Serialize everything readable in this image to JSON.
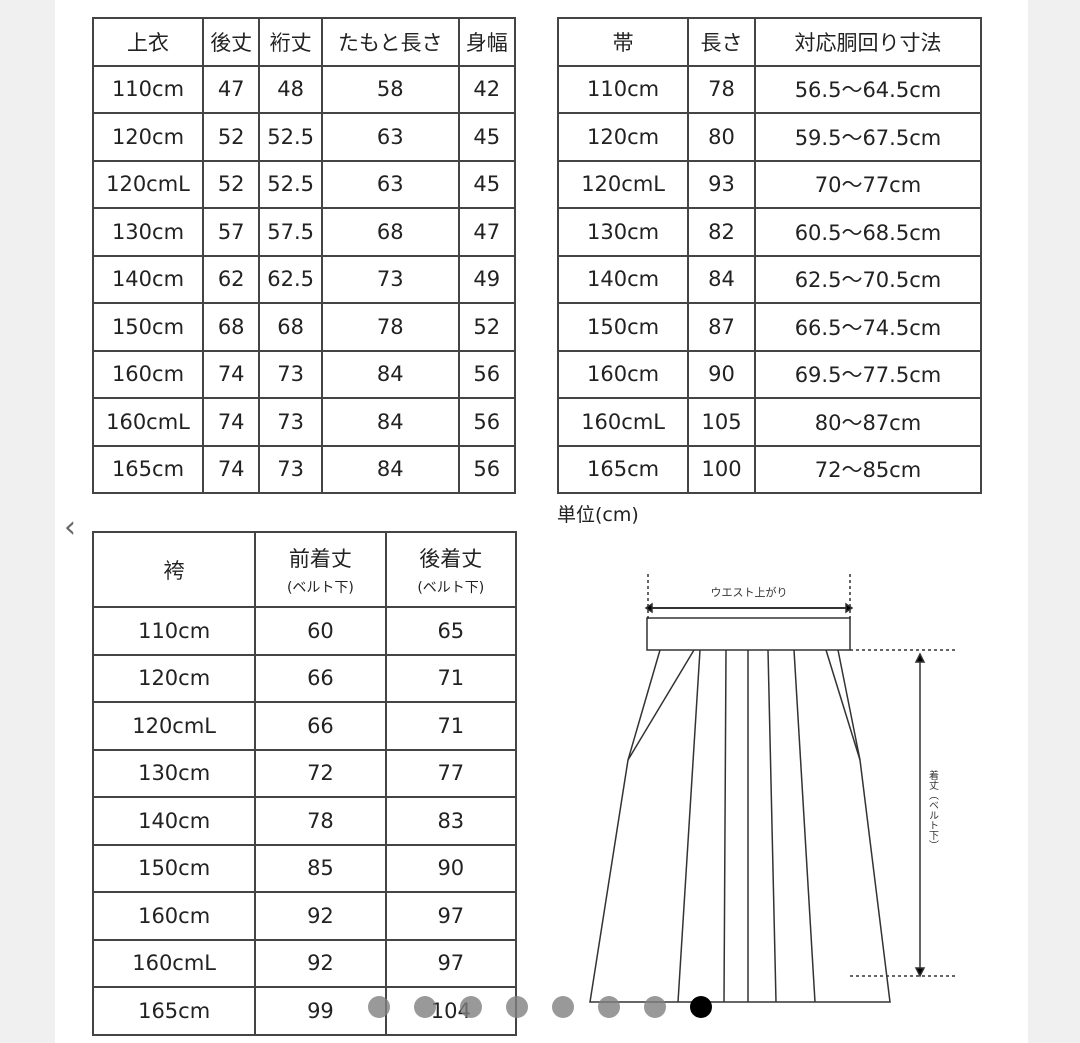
{
  "top": {
    "headers": [
      "上衣",
      "後丈",
      "裄丈",
      "たもと長さ",
      "身幅"
    ],
    "rows": [
      [
        "110cm",
        "47",
        "48",
        "58",
        "42"
      ],
      [
        "120cm",
        "52",
        "52.5",
        "63",
        "45"
      ],
      [
        "120cmL",
        "52",
        "52.5",
        "63",
        "45"
      ],
      [
        "130cm",
        "57",
        "57.5",
        "68",
        "47"
      ],
      [
        "140cm",
        "62",
        "62.5",
        "73",
        "49"
      ],
      [
        "150cm",
        "68",
        "68",
        "78",
        "52"
      ],
      [
        "160cm",
        "74",
        "73",
        "84",
        "56"
      ],
      [
        "160cmL",
        "74",
        "73",
        "84",
        "56"
      ],
      [
        "165cm",
        "74",
        "73",
        "84",
        "56"
      ]
    ]
  },
  "obi": {
    "headers": [
      "帯",
      "長さ",
      "対応胴回り寸法"
    ],
    "rows": [
      [
        "110cm",
        "78",
        "56.5～64.5cm"
      ],
      [
        "120cm",
        "80",
        "59.5～67.5cm"
      ],
      [
        "120cmL",
        "93",
        "70～77cm"
      ],
      [
        "130cm",
        "82",
        "60.5～68.5cm"
      ],
      [
        "140cm",
        "84",
        "62.5～70.5cm"
      ],
      [
        "150cm",
        "87",
        "66.5～74.5cm"
      ],
      [
        "160cm",
        "90",
        "69.5～77.5cm"
      ],
      [
        "160cmL",
        "105",
        "80～87cm"
      ],
      [
        "165cm",
        "100",
        "72～85cm"
      ]
    ]
  },
  "unit": "単位(cm)",
  "hakama": {
    "headers": [
      "袴",
      "前着丈",
      "後着丈"
    ],
    "header_sub": "(ベルト下)",
    "rows": [
      [
        "110cm",
        "60",
        "65"
      ],
      [
        "120cm",
        "66",
        "71"
      ],
      [
        "120cmL",
        "66",
        "71"
      ],
      [
        "130cm",
        "72",
        "77"
      ],
      [
        "140cm",
        "78",
        "83"
      ],
      [
        "150cm",
        "85",
        "90"
      ],
      [
        "160cm",
        "92",
        "97"
      ],
      [
        "160cmL",
        "92",
        "97"
      ],
      [
        "165cm",
        "99",
        "104"
      ]
    ]
  },
  "diagram": {
    "waist_label": "ウエスト上がり",
    "length_label": "着丈（ベルト下）"
  },
  "carousel": {
    "prev_icon": "chevron-left-icon",
    "total": 8,
    "active": 8
  }
}
